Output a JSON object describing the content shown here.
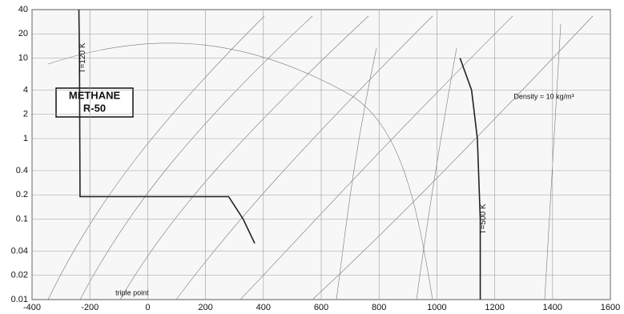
{
  "chart_data": {
    "type": "line",
    "title": "METHANE",
    "subtitle": "R-50",
    "xlim": [
      -400,
      1600
    ],
    "xticks": [
      -400,
      -200,
      0,
      200,
      400,
      600,
      800,
      1000,
      1200,
      1400,
      1600
    ],
    "ylim": [
      0.01,
      40
    ],
    "yticks": [
      0.01,
      0.02,
      0.04,
      0.1,
      0.2,
      0.4,
      1,
      2,
      4,
      10,
      20,
      40
    ],
    "log_y": true,
    "grid": true,
    "series": [
      {
        "name": "T=120 K",
        "color": "#222222",
        "x": [
          -238,
          -236,
          -234,
          280,
          330,
          370
        ],
        "values": [
          40,
          10,
          0.19,
          0.19,
          0.1,
          0.05
        ]
      },
      {
        "name": "T=500 K",
        "color": "#222222",
        "x": [
          1150,
          1150,
          1140,
          1120,
          1080
        ],
        "values": [
          0.01,
          0.1,
          1,
          4,
          10
        ]
      }
    ],
    "annotations": [
      {
        "text": "Density = 10 kg/m³",
        "x": 1370,
        "y": 3.3
      },
      {
        "text": "triple point",
        "x": -54,
        "y": 0.012
      }
    ]
  }
}
